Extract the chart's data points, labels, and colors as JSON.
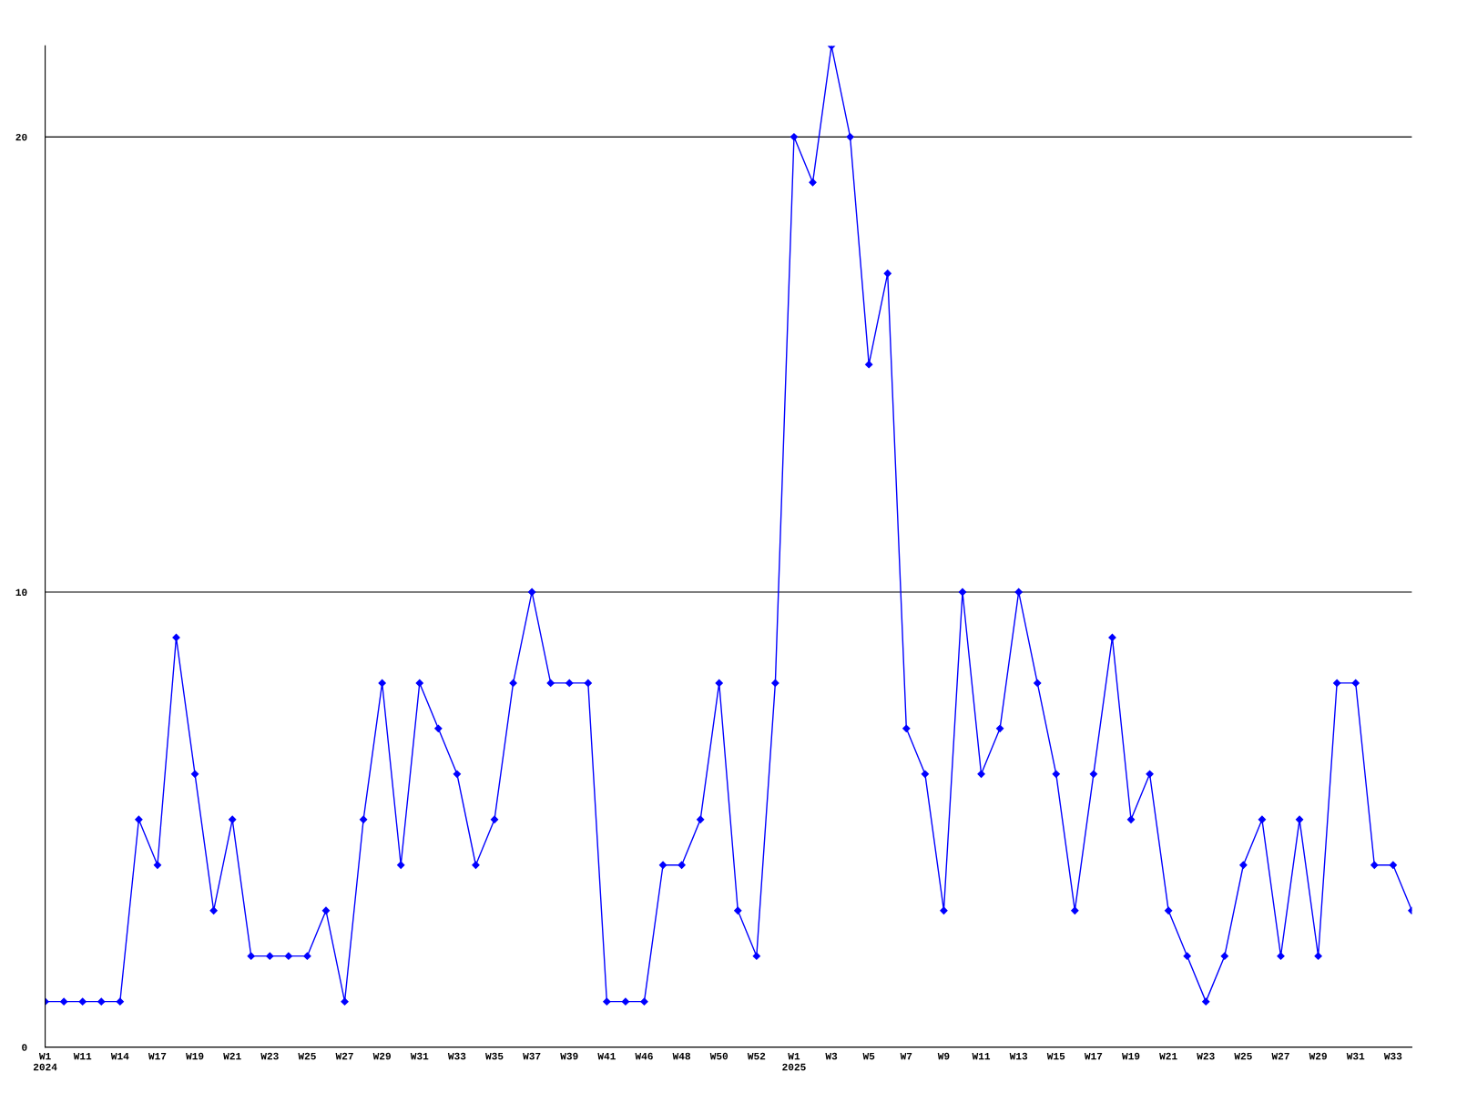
{
  "chart_data": {
    "type": "line",
    "categories": [
      "W1\n2024",
      null,
      "W11",
      null,
      "W14",
      null,
      "W17",
      null,
      "W19",
      null,
      "W21",
      null,
      "W23",
      null,
      "W25",
      null,
      "W27",
      null,
      "W29",
      null,
      "W31",
      null,
      "W33",
      null,
      "W35",
      null,
      "W37",
      null,
      "W39",
      null,
      "W41",
      null,
      "W46",
      null,
      "W48",
      null,
      "W50",
      null,
      "W52",
      null,
      "W1\n2025",
      null,
      "W3",
      null,
      "W5",
      null,
      "W7",
      null,
      "W9",
      null,
      "W11",
      null,
      "W13",
      null,
      "W15",
      null,
      "W17",
      null,
      "W19",
      null,
      "W21",
      null,
      "W23",
      null,
      "W25",
      null,
      "W27",
      null,
      "W29",
      null,
      "W31",
      null,
      "W33",
      null
    ],
    "series": [
      {
        "color": "#0000ff",
        "values": [
          1,
          1,
          1,
          1,
          1,
          5,
          4,
          9,
          6,
          3,
          5,
          2,
          2,
          2,
          2,
          3,
          1,
          5,
          8,
          4,
          8,
          7,
          6,
          4,
          5,
          8,
          10,
          8,
          8,
          8,
          1,
          1,
          1,
          4,
          4,
          5,
          8,
          3,
          2,
          8,
          20,
          19,
          22,
          20,
          15,
          17,
          7,
          6,
          3,
          10,
          6,
          7,
          10,
          8,
          6,
          3,
          6,
          9,
          5,
          6,
          3,
          2,
          1,
          2,
          4,
          5,
          2,
          5,
          2,
          8,
          8,
          4,
          4,
          3
        ]
      }
    ],
    "ylim": [
      0,
      22
    ],
    "yticks": [
      0,
      10,
      20
    ],
    "grid": "y",
    "marker": "diamond",
    "line_style": "solid"
  }
}
